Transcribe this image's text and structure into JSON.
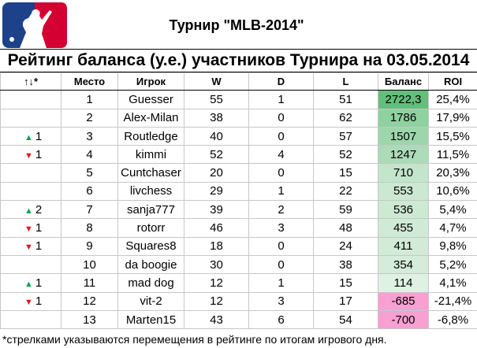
{
  "header": {
    "title": "Турнир \"MLB-2014\"",
    "subtitle": "Рейтинг баланса (у.е.) участников Турнира на 03.05.2014"
  },
  "columns": [
    "↑↓*",
    "Место",
    "Игрок",
    "W",
    "D",
    "L",
    "Баланс",
    "ROI"
  ],
  "colors": {
    "up_arrow": "#00a651",
    "down_arrow": "#e0191e",
    "positive_balance_max": "#63be7b",
    "positive_balance_min": "#e9f5ec",
    "negative_balance": "#f7a0d1"
  },
  "rows": [
    {
      "move_dir": "",
      "move": "",
      "place": "1",
      "player": "Guesser",
      "w": "55",
      "d": "1",
      "l": "51",
      "balance": "2722,3",
      "roi": "25,4%",
      "bal_color": "#63be7b"
    },
    {
      "move_dir": "",
      "move": "",
      "place": "2",
      "player": "Alex-Milan",
      "w": "38",
      "d": "0",
      "l": "62",
      "balance": "1786",
      "roi": "17,9%",
      "bal_color": "#8fd19f"
    },
    {
      "move_dir": "up",
      "move": "1",
      "place": "3",
      "player": "Routledge",
      "w": "40",
      "d": "0",
      "l": "57",
      "balance": "1507",
      "roi": "15,5%",
      "bal_color": "#9ed6ac"
    },
    {
      "move_dir": "down",
      "move": "1",
      "place": "4",
      "player": "kimmi",
      "w": "52",
      "d": "4",
      "l": "52",
      "balance": "1247",
      "roi": "11,5%",
      "bal_color": "#abdbb7"
    },
    {
      "move_dir": "",
      "move": "",
      "place": "5",
      "player": "Cuntchaser",
      "w": "20",
      "d": "0",
      "l": "15",
      "balance": "710",
      "roi": "20,3%",
      "bal_color": "#c3e5cb"
    },
    {
      "move_dir": "",
      "move": "",
      "place": "6",
      "player": "livchess",
      "w": "29",
      "d": "1",
      "l": "22",
      "balance": "553",
      "roi": "10,6%",
      "bal_color": "#cbe8d1"
    },
    {
      "move_dir": "up",
      "move": "2",
      "place": "7",
      "player": "sanja777",
      "w": "39",
      "d": "2",
      "l": "59",
      "balance": "536",
      "roi": "5,4%",
      "bal_color": "#cce9d2"
    },
    {
      "move_dir": "down",
      "move": "1",
      "place": "8",
      "player": "rotorr",
      "w": "46",
      "d": "3",
      "l": "48",
      "balance": "455",
      "roi": "4,7%",
      "bal_color": "#cfead5"
    },
    {
      "move_dir": "down",
      "move": "1",
      "place": "9",
      "player": "Squares8",
      "w": "18",
      "d": "0",
      "l": "24",
      "balance": "411",
      "roi": "9,8%",
      "bal_color": "#d1ebd7"
    },
    {
      "move_dir": "",
      "move": "",
      "place": "10",
      "player": "da boogie",
      "w": "30",
      "d": "0",
      "l": "38",
      "balance": "354",
      "roi": "5,2%",
      "bal_color": "#d4ecd9"
    },
    {
      "move_dir": "up",
      "move": "1",
      "place": "11",
      "player": "mad dog",
      "w": "12",
      "d": "1",
      "l": "15",
      "balance": "114",
      "roi": "4,1%",
      "bal_color": "#dff1e3"
    },
    {
      "move_dir": "down",
      "move": "1",
      "place": "12",
      "player": "vit-2",
      "w": "12",
      "d": "3",
      "l": "17",
      "balance": "-685",
      "roi": "-21,4%",
      "bal_color": "#f7a0d1"
    },
    {
      "move_dir": "",
      "move": "",
      "place": "13",
      "player": "Marten15",
      "w": "43",
      "d": "6",
      "l": "54",
      "balance": "-700",
      "roi": "-6,8%",
      "bal_color": "#f7a0d1"
    }
  ],
  "footnote": "*стрелками указываются перемещения в рейтинге по итогам игрового дня."
}
